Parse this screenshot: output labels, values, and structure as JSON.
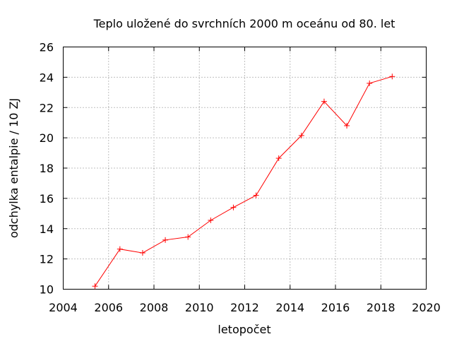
{
  "chart_data": {
    "type": "line",
    "title": "Teplo uložené do svrchních 2000 m oceánu od 80. let",
    "xlabel": "letopočet",
    "ylabel": "odchylka entalpie / 10 ZJ",
    "xlim": [
      2004,
      2020
    ],
    "ylim": [
      10,
      26
    ],
    "xticks": [
      2004,
      2006,
      2008,
      2010,
      2012,
      2014,
      2016,
      2018,
      2020
    ],
    "yticks": [
      10,
      12,
      14,
      16,
      18,
      20,
      22,
      24,
      26
    ],
    "grid": true,
    "legend": "none",
    "marker": "+",
    "series": [
      {
        "color": "#ff0000",
        "x": [
          2005.4,
          2006.5,
          2007.5,
          2008.5,
          2009.5,
          2010.5,
          2011.5,
          2012.5,
          2013.5,
          2014.5,
          2015.5,
          2016.5,
          2017.5,
          2018.5
        ],
        "y": [
          10.2,
          12.65,
          12.4,
          13.25,
          13.45,
          14.55,
          15.4,
          16.2,
          18.65,
          20.15,
          22.4,
          20.8,
          23.6,
          24.05
        ]
      }
    ]
  }
}
